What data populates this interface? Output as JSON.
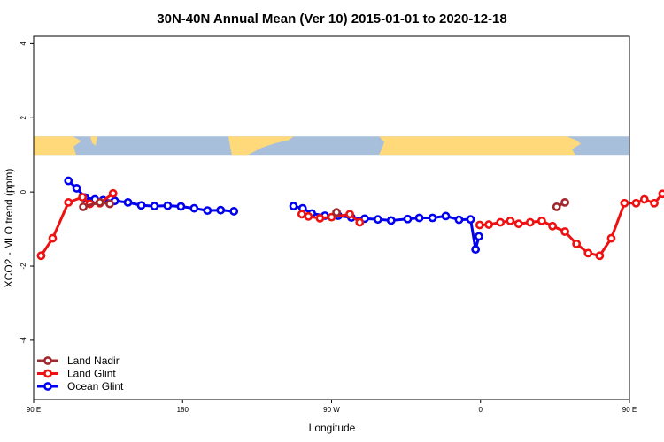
{
  "chart_data": {
    "type": "line",
    "title": "30N-40N Annual Mean (Ver 10)   2015-01-01 to 2020-12-18",
    "xlabel": "Longitude",
    "ylabel": "XCO2 - MLO trend (ppm)",
    "xlim": [
      90,
      450
    ],
    "ylim": [
      -5.6,
      4.2
    ],
    "x_ticks": [
      {
        "value": 90,
        "label": "90 E"
      },
      {
        "value": 180,
        "label": "180"
      },
      {
        "value": 270,
        "label": "90 W"
      },
      {
        "value": 360,
        "label": "0"
      },
      {
        "value": 450,
        "label": "90 E"
      },
      {
        "value": 540,
        "label": "180"
      }
    ],
    "y_ticks": [
      {
        "value": 4,
        "label": "4"
      },
      {
        "value": 2,
        "label": "2"
      },
      {
        "value": 0,
        "label": "0"
      },
      {
        "value": -2,
        "label": "-2"
      },
      {
        "value": -4,
        "label": "-4"
      }
    ],
    "grid": false,
    "legend_position": "bottom-left",
    "map_band": {
      "y_range": [
        1.0,
        1.5
      ],
      "land_color": "#ffd97a",
      "ocean_color": "#a8bfdc"
    },
    "series": [
      {
        "name": "Land Nadir",
        "color": "#a0282d",
        "points": [
          [
            120,
            -0.4
          ],
          [
            130,
            -0.28
          ],
          [
            136,
            -0.32
          ],
          [
            273,
            -0.55
          ],
          [
            406,
            -0.4
          ],
          [
            411,
            -0.28
          ]
        ]
      },
      {
        "name": "Land Glint",
        "color": "#ee1111",
        "points": [
          [
            94.5,
            -1.72
          ],
          [
            101.5,
            -1.25
          ],
          [
            111,
            -0.28
          ],
          [
            119.5,
            -0.14
          ],
          [
            124,
            -0.32
          ],
          [
            130,
            -0.3
          ],
          [
            138,
            -0.04
          ],
          [
            252,
            -0.6
          ],
          [
            256,
            -0.66
          ],
          [
            263,
            -0.71
          ],
          [
            270,
            -0.68
          ],
          [
            281,
            -0.6
          ],
          [
            287,
            -0.82
          ],
          [
            359.5,
            -0.89
          ],
          [
            365,
            -0.88
          ],
          [
            372,
            -0.82
          ],
          [
            378,
            -0.78
          ],
          [
            383,
            -0.86
          ],
          [
            390,
            -0.82
          ],
          [
            397,
            -0.78
          ],
          [
            403.5,
            -0.92
          ],
          [
            411,
            -1.07
          ],
          [
            418,
            -1.4
          ],
          [
            425,
            -1.65
          ],
          [
            432,
            -1.72
          ],
          [
            439,
            -1.25
          ],
          [
            447,
            -0.3
          ],
          [
            454,
            -0.3
          ],
          [
            459,
            -0.2
          ],
          [
            465,
            -0.3
          ],
          [
            470,
            -0.05
          ]
        ]
      },
      {
        "name": "Ocean Glint",
        "color": "#0000ee",
        "points": [
          [
            111,
            0.3
          ],
          [
            116,
            0.1
          ],
          [
            121,
            -0.15
          ],
          [
            127,
            -0.2
          ],
          [
            132,
            -0.22
          ],
          [
            139,
            -0.24
          ],
          [
            147,
            -0.28
          ],
          [
            155,
            -0.36
          ],
          [
            163,
            -0.38
          ],
          [
            171,
            -0.37
          ],
          [
            179,
            -0.39
          ],
          [
            187,
            -0.44
          ],
          [
            195,
            -0.5
          ],
          [
            203,
            -0.49
          ],
          [
            211,
            -0.52
          ],
          [
            247,
            -0.38
          ],
          [
            252.5,
            -0.44
          ],
          [
            258,
            -0.58
          ],
          [
            266,
            -0.64
          ],
          [
            274,
            -0.64
          ],
          [
            282,
            -0.69
          ],
          [
            290,
            -0.72
          ],
          [
            298,
            -0.74
          ],
          [
            306,
            -0.77
          ],
          [
            316,
            -0.73
          ],
          [
            323,
            -0.7
          ],
          [
            331,
            -0.7
          ],
          [
            339,
            -0.65
          ],
          [
            347,
            -0.75
          ],
          [
            354,
            -0.74
          ],
          [
            357,
            -1.55
          ],
          [
            359,
            -1.2
          ]
        ]
      }
    ],
    "legend": [
      {
        "label": "Land Nadir",
        "color": "#a0282d"
      },
      {
        "label": "Land Glint",
        "color": "#ee1111"
      },
      {
        "label": "Ocean Glint",
        "color": "#0000ee"
      }
    ]
  }
}
